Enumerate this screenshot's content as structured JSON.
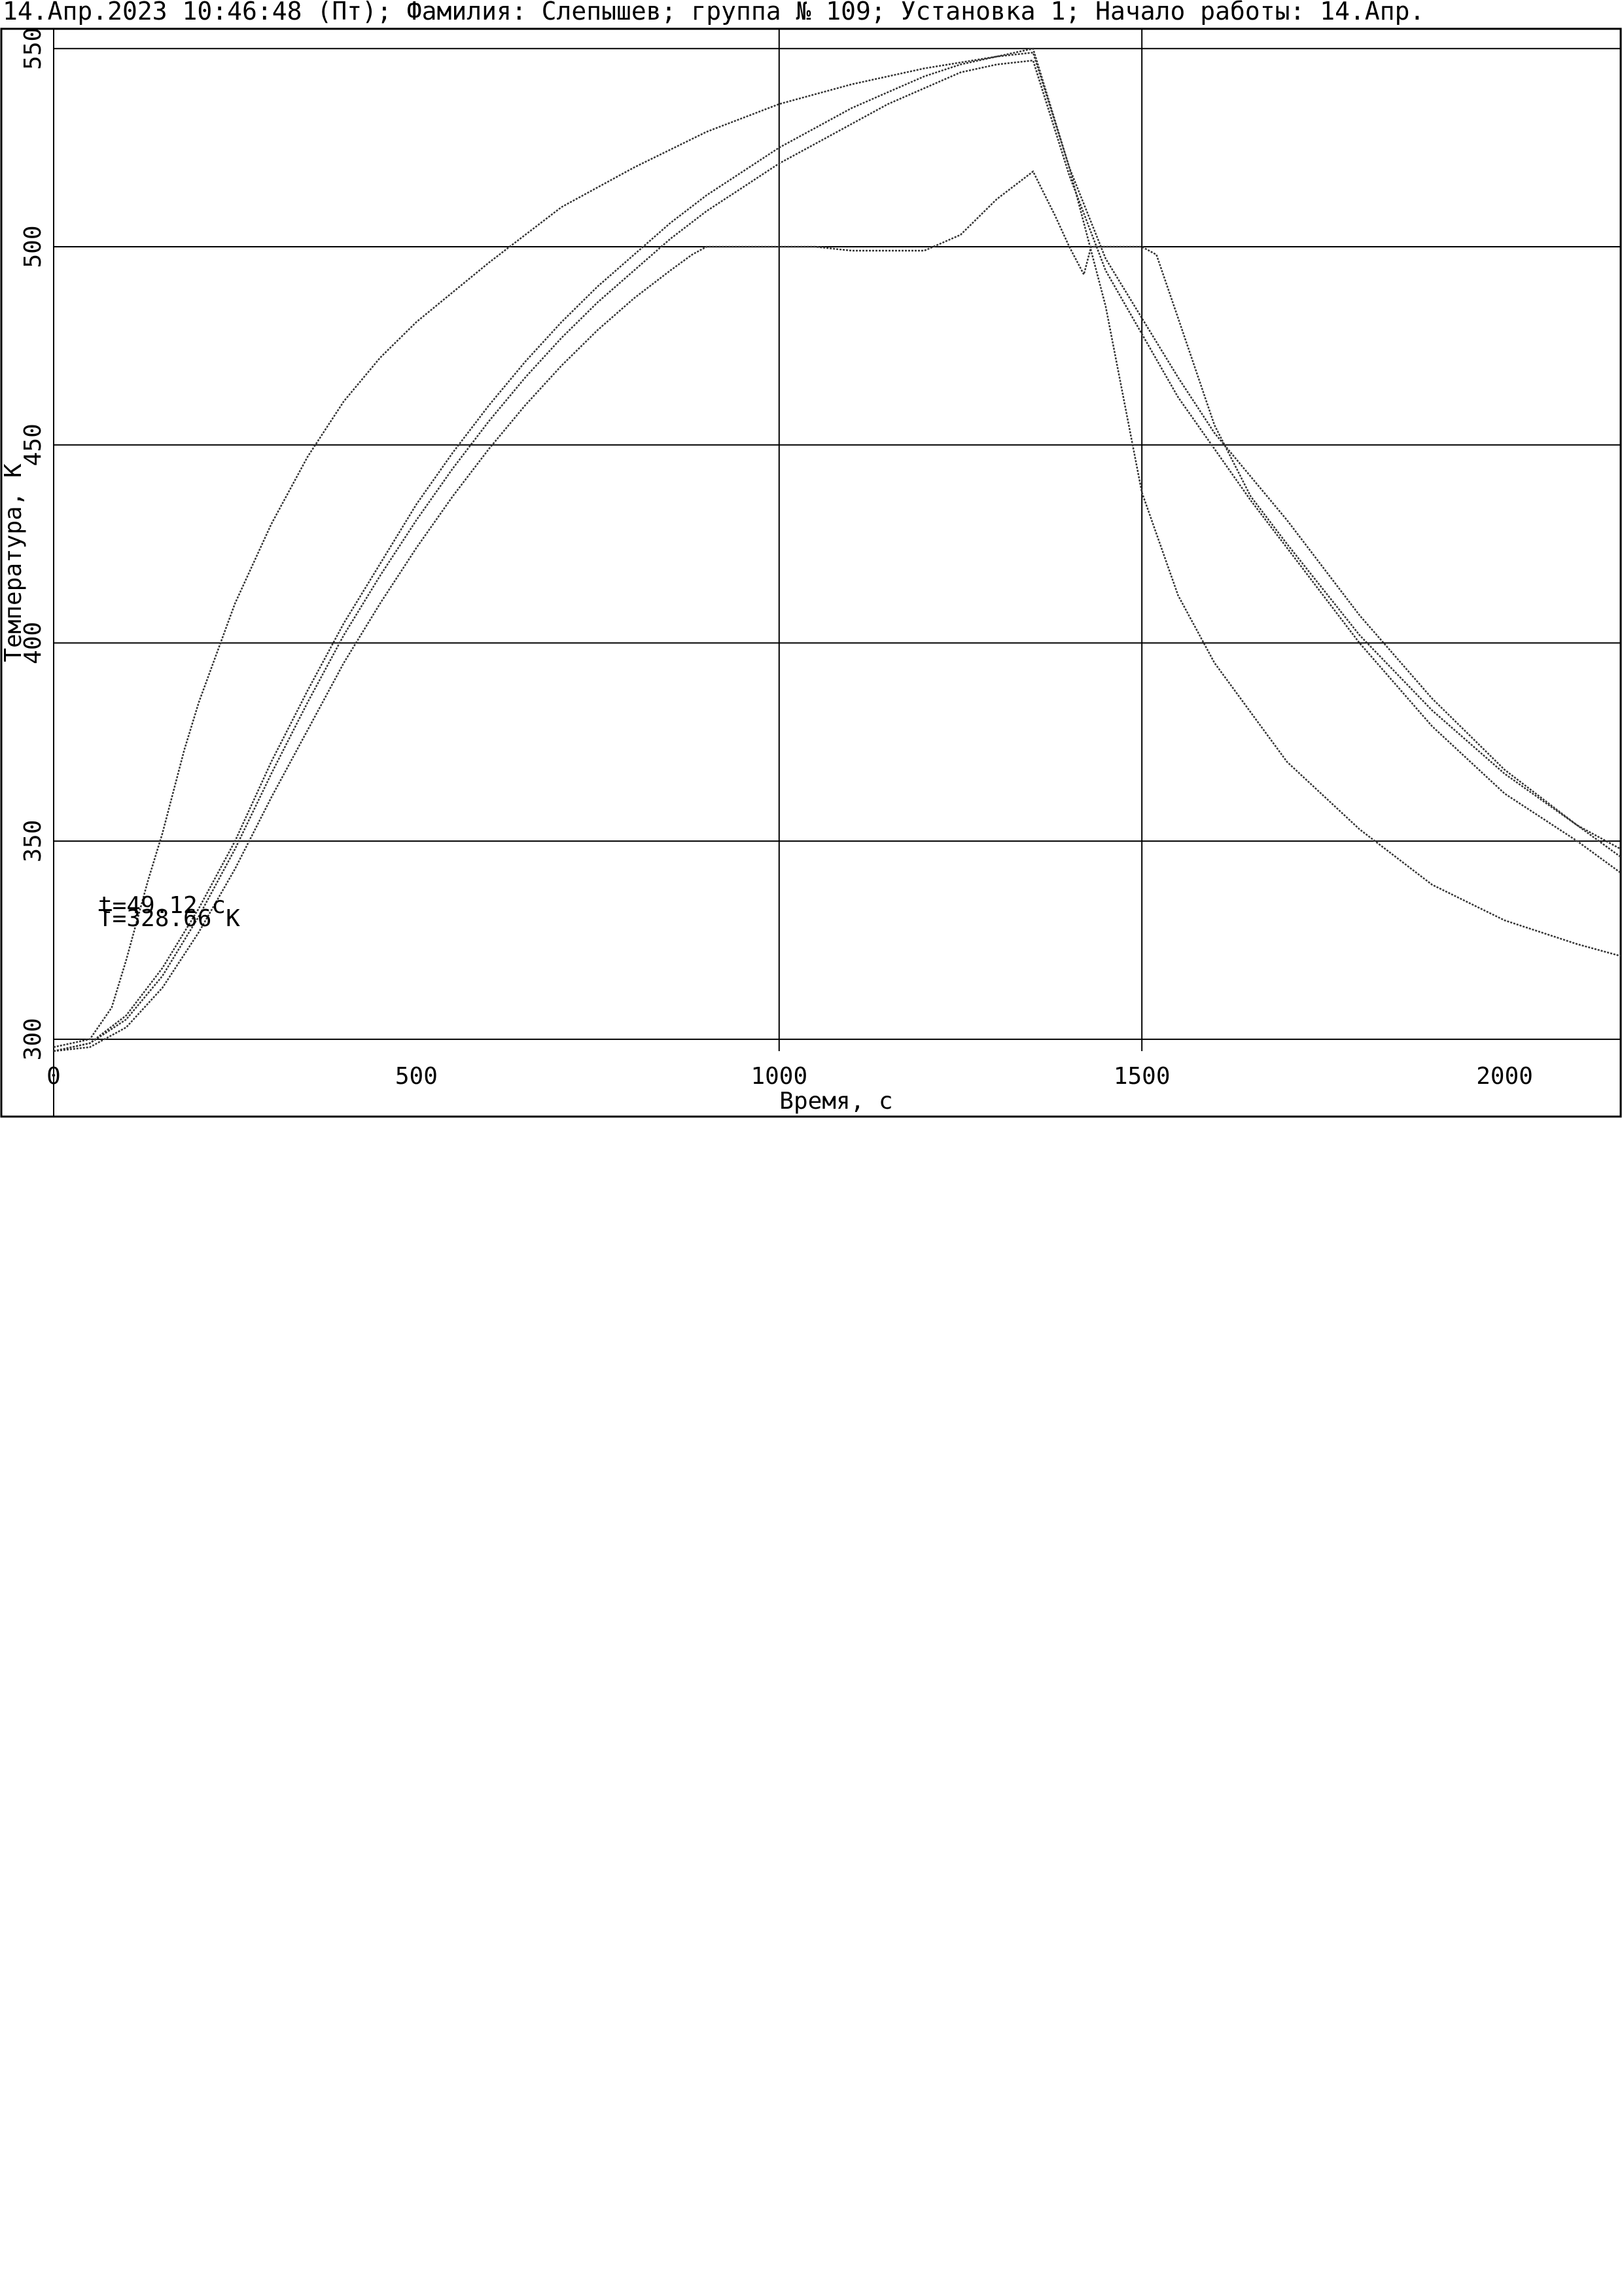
{
  "header": {
    "text": "14.Апр.2023 10:46:48 (Пт); Фамилия: Слепышев; группа № 109; Установка 1; Начало работы: 14.Апр."
  },
  "cursor": {
    "time_text": "t=49.12 c",
    "temp_text": "T=328.66 K"
  },
  "chart_data": {
    "type": "line",
    "title": "",
    "xlabel": "Время, c",
    "ylabel": "Температура, K",
    "xlim": [
      0,
      2160
    ],
    "ylim": [
      297,
      555
    ],
    "xticks": [
      0,
      500,
      1000,
      1500,
      2000
    ],
    "yticks": [
      300,
      350,
      400,
      450,
      500,
      550
    ],
    "xtick_labels": [
      "0",
      "500",
      "1000",
      "1500",
      "2000"
    ],
    "ytick_labels": [
      "300",
      "350",
      "400",
      "450",
      "500",
      "550"
    ],
    "grid": true,
    "line_color": "#333333",
    "series": [
      {
        "x": [
          0,
          50,
          80,
          100,
          130,
          150,
          180,
          200,
          250,
          300,
          350,
          400,
          450,
          500,
          600,
          700,
          800,
          900,
          1000,
          1100,
          1200,
          1300,
          1350,
          1400,
          1450,
          1500,
          1550,
          1600,
          1700,
          1800,
          1900,
          2000,
          2100,
          2160
        ],
        "y": [
          298,
          300,
          308,
          320,
          340,
          352,
          373,
          385,
          410,
          430,
          447,
          461,
          472,
          481,
          496,
          510,
          520,
          529,
          536,
          541,
          545,
          548,
          550,
          520,
          485,
          438,
          412,
          395,
          370,
          353,
          339,
          330,
          324,
          321
        ]
      },
      {
        "x": [
          0,
          50,
          100,
          150,
          200,
          250,
          300,
          350,
          400,
          450,
          500,
          550,
          600,
          650,
          700,
          750,
          800,
          850,
          900,
          950,
          1000,
          1050,
          1100,
          1150,
          1200,
          1250,
          1300,
          1350,
          1400,
          1450,
          1500,
          1550,
          1600,
          1650,
          1700,
          1800,
          1900,
          2000,
          2100,
          2160
        ],
        "y": [
          297,
          299,
          306,
          318,
          333,
          350,
          370,
          388,
          405,
          420,
          435,
          448,
          460,
          471,
          481,
          490,
          498,
          506,
          513,
          519,
          525,
          530,
          535,
          539,
          543,
          546,
          548,
          549,
          520,
          497,
          482,
          467,
          453,
          442,
          431,
          407,
          386,
          368,
          354,
          346
        ]
      },
      {
        "x": [
          0,
          50,
          100,
          150,
          200,
          250,
          300,
          350,
          400,
          450,
          500,
          550,
          600,
          650,
          700,
          750,
          800,
          850,
          900,
          950,
          1000,
          1050,
          1100,
          1150,
          1200,
          1250,
          1300,
          1350,
          1400,
          1450,
          1500,
          1550,
          1600,
          1650,
          1700,
          1800,
          1900,
          2000,
          2100,
          2160
        ],
        "y": [
          297,
          299,
          305,
          316,
          331,
          348,
          367,
          385,
          402,
          417,
          431,
          444,
          456,
          467,
          477,
          486,
          494,
          502,
          509,
          515,
          521,
          526,
          531,
          536,
          540,
          544,
          546,
          547,
          518,
          494,
          478,
          462,
          449,
          436,
          424,
          400,
          379,
          362,
          350,
          342
        ]
      },
      {
        "x": [
          0,
          50,
          100,
          150,
          200,
          250,
          300,
          350,
          400,
          450,
          500,
          550,
          600,
          650,
          700,
          750,
          800,
          850,
          880,
          900,
          950,
          1000,
          1050,
          1100,
          1150,
          1200,
          1250,
          1300,
          1350,
          1380,
          1400,
          1420,
          1430,
          1470,
          1500,
          1520,
          1550,
          1600,
          1650,
          1700,
          1800,
          1900,
          2000,
          2100,
          2160
        ],
        "y": [
          297,
          298,
          303,
          313,
          327,
          343,
          361,
          378,
          395,
          410,
          424,
          437,
          449,
          460,
          470,
          479,
          487,
          494,
          498,
          500,
          500,
          500,
          500,
          499,
          499,
          499,
          503,
          512,
          519,
          508,
          500,
          493,
          500,
          500,
          500,
          498,
          482,
          455,
          437,
          425,
          402,
          383,
          367,
          354,
          348
        ]
      }
    ]
  }
}
